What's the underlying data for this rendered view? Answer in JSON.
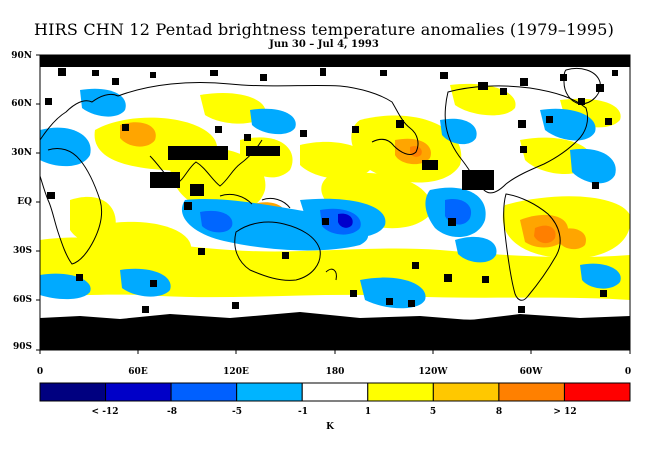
{
  "title": "HIRS CHN 12 Pentad brightness temperature anomalies (1979–1995)",
  "subtitle": "Jun 30 – Jul 4, 1993",
  "map": {
    "lat_labels": [
      "90N",
      "60N",
      "30N",
      "EQ",
      "30S",
      "60S",
      "90S"
    ],
    "lon_labels": [
      "0",
      "60E",
      "120E",
      "180",
      "120W",
      "60W",
      "0"
    ],
    "colors": {
      "ocean": "#ffffff",
      "missing": "#000000",
      "pos_weak": "#ffff00",
      "pos_mid": "#ffa500",
      "pos_strong": "#ff7f00",
      "neg_weak": "#00aaff",
      "neg_mid": "#0066ff",
      "neg_strong": "#0000cc",
      "coastline": "#000000"
    }
  },
  "colorbar": {
    "unit": "K",
    "bins": [
      {
        "color": "#000080"
      },
      {
        "color": "#0000c8"
      },
      {
        "color": "#0060ff"
      },
      {
        "color": "#00b4ff"
      },
      {
        "color": "#ffffff"
      },
      {
        "color": "#ffff00"
      },
      {
        "color": "#ffc800"
      },
      {
        "color": "#ff8000"
      },
      {
        "color": "#ff0000"
      }
    ],
    "labels": [
      "< -12",
      "-8",
      "-5",
      "-1",
      "1",
      "5",
      "8",
      "> 12"
    ]
  }
}
